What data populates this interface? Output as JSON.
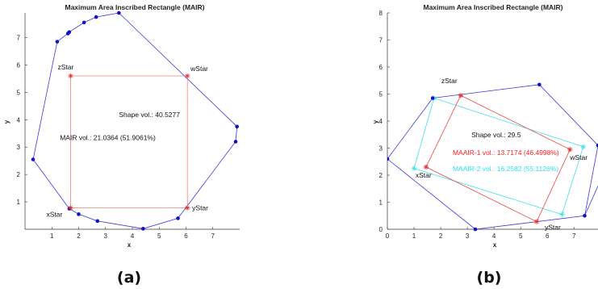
{
  "captions": [
    "(a)",
    "(b)"
  ],
  "colors": {
    "shape": "#3a3ad8",
    "point": "#1010c8",
    "mair": "#f08080",
    "mair_star": "#e03030",
    "maair1": "#ee4444",
    "maair2": "#40e0f0",
    "text_red": "#ee2222",
    "text_cyan": "#33ddee",
    "axis": "#333333"
  },
  "chart_data": [
    {
      "type": "scatter",
      "title": "Maximum Area Inscribed Rectangle (MAIR)",
      "xlabel": "x",
      "ylabel": "y",
      "xlim": [
        0,
        8
      ],
      "ylim": [
        0,
        7.9
      ],
      "xticks": [
        "1",
        "2",
        "3",
        "4",
        "5",
        "6",
        "7"
      ],
      "yticks": [
        "1",
        "2",
        "3",
        "4",
        "5",
        "6",
        "7"
      ],
      "grid": false,
      "shape_points": [
        {
          "x": 3.5,
          "y": 7.9
        },
        {
          "x": 2.65,
          "y": 7.75
        },
        {
          "x": 2.2,
          "y": 7.55
        },
        {
          "x": 1.65,
          "y": 7.2
        },
        {
          "x": 1.6,
          "y": 7.15
        },
        {
          "x": 1.2,
          "y": 6.85
        },
        {
          "x": 0.3,
          "y": 2.55
        },
        {
          "x": 1.65,
          "y": 0.75
        },
        {
          "x": 2.0,
          "y": 0.55
        },
        {
          "x": 2.7,
          "y": 0.3
        },
        {
          "x": 4.4,
          "y": 0.02
        },
        {
          "x": 5.7,
          "y": 0.4
        },
        {
          "x": 7.85,
          "y": 3.2
        },
        {
          "x": 7.9,
          "y": 3.75
        }
      ],
      "rectangles": [
        {
          "name": "MAIR",
          "corners": [
            {
              "label": "xStar",
              "x": 1.7,
              "y": 0.78
            },
            {
              "label": "yStar",
              "x": 6.05,
              "y": 0.78
            },
            {
              "label": "wStar",
              "x": 6.05,
              "y": 5.6
            },
            {
              "label": "zStar",
              "x": 1.7,
              "y": 5.6
            }
          ]
        }
      ],
      "annotations": [
        {
          "text": "Shape vol.: 40.5277",
          "x": 3.5,
          "y": 4.1,
          "color": "black"
        },
        {
          "text": "MAIR vol.: 21.0364 (51.9061%)",
          "x": 1.3,
          "y": 3.25,
          "color": "black"
        }
      ]
    },
    {
      "type": "scatter",
      "title": "Maximum Area Inscribed Rectangle (MAIR)",
      "xlabel": "x",
      "ylabel": "y",
      "xlim": [
        0,
        7.9
      ],
      "ylim": [
        0,
        8
      ],
      "xticks": [
        "0",
        "1",
        "2",
        "3",
        "4",
        "5",
        "6",
        "7"
      ],
      "yticks": [
        "0",
        "1",
        "2",
        "3",
        "4",
        "5",
        "6",
        "7",
        "8"
      ],
      "grid": false,
      "shape_points": [
        {
          "x": 0.0,
          "y": 2.6
        },
        {
          "x": 1.7,
          "y": 4.85
        },
        {
          "x": 5.7,
          "y": 5.35
        },
        {
          "x": 7.9,
          "y": 3.1
        },
        {
          "x": 7.4,
          "y": 0.5
        },
        {
          "x": 3.3,
          "y": 0.0
        }
      ],
      "shape_extra_edges": [
        [
          {
            "x": 0.0,
            "y": 2.6
          },
          {
            "x": 3.3,
            "y": 0.0
          }
        ],
        [
          {
            "x": 7.4,
            "y": 0.5
          },
          {
            "x": 7.9,
            "y": 1.6
          }
        ]
      ],
      "rectangles": [
        {
          "name": "MAAIR-1",
          "corners": [
            {
              "label": "xStar",
              "x": 1.45,
              "y": 2.3
            },
            {
              "label": "yStar",
              "x": 5.6,
              "y": 0.28
            },
            {
              "label": "wStar",
              "x": 6.85,
              "y": 2.95
            },
            {
              "label": "zStar",
              "x": 2.75,
              "y": 4.95
            }
          ]
        },
        {
          "name": "MAAIR-2",
          "corners": [
            {
              "x": 1.0,
              "y": 2.25
            },
            {
              "x": 6.55,
              "y": 0.55
            },
            {
              "x": 7.35,
              "y": 3.05
            },
            {
              "x": 1.75,
              "y": 4.85
            }
          ]
        }
      ],
      "annotations": [
        {
          "text": "Shape vol.: 29.5",
          "x": 3.15,
          "y": 3.4,
          "color": "black"
        },
        {
          "text": "MAAIR-1 vol.: 13.7174 (46.4998%)",
          "x": 2.45,
          "y": 2.75,
          "color": "red"
        },
        {
          "text": "MAAIR-2 vol.: 16.2582 (55.1126%)",
          "x": 2.45,
          "y": 2.15,
          "color": "cyan"
        }
      ]
    }
  ]
}
